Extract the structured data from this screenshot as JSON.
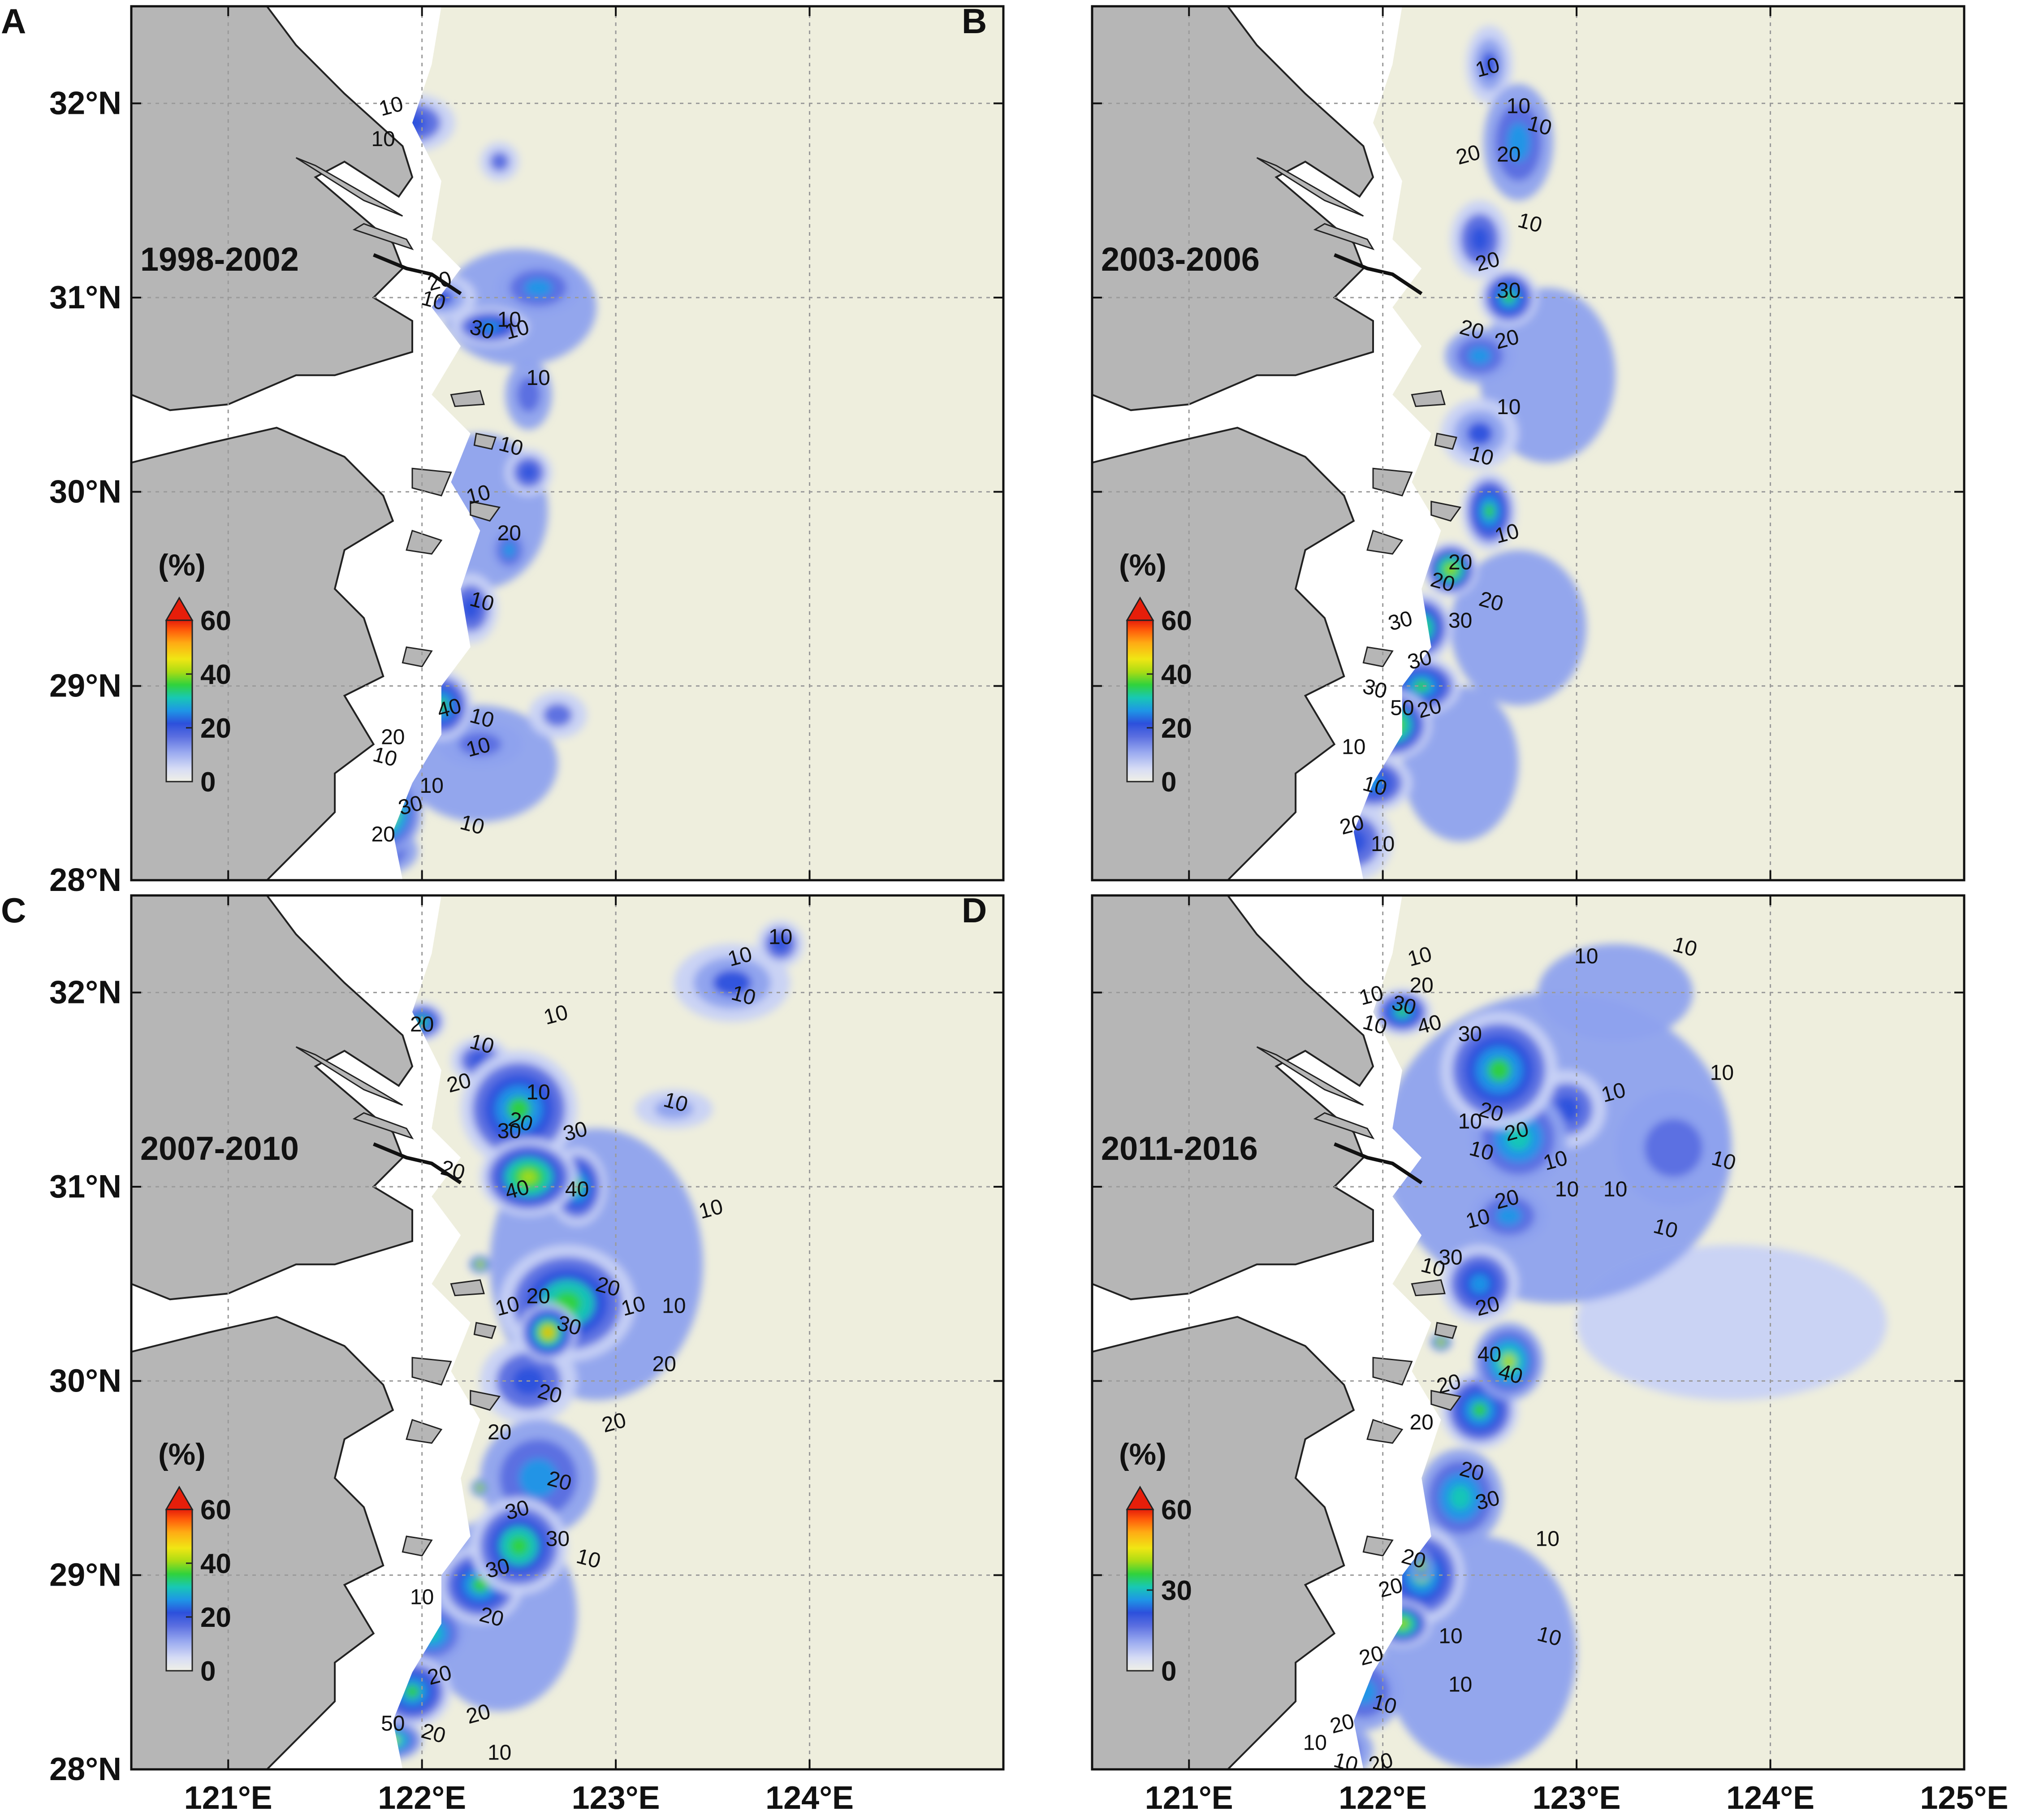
{
  "figure": {
    "x_ticks": [
      "121°E",
      "122°E",
      "123°E",
      "124°E",
      "125°E"
    ],
    "y_ticks": [
      "32°N",
      "31°N",
      "30°N",
      "29°N",
      "28°N"
    ],
    "colors": {
      "land": "#b6b6b6",
      "coast": "#ffffff",
      "ocean_background": "#eeeedd",
      "colormap": [
        "#f0f0e6",
        "#c8d2f5",
        "#8ea2ee",
        "#5a6ee0",
        "#2c50dc",
        "#1e96e6",
        "#18c8b4",
        "#30d23c",
        "#aadc14",
        "#f0e614",
        "#ffaa14",
        "#ff5a0a",
        "#e61e0a"
      ]
    },
    "panels": [
      {
        "letter": "A",
        "period": "1998-2002",
        "colorbar": {
          "unit": "(%)",
          "ticks": [
            "60",
            "40",
            "20",
            "0"
          ]
        },
        "contour_labels": [
          "10",
          "10",
          "10",
          "20",
          "10",
          "30",
          "10",
          "10",
          "10",
          "10",
          "20",
          "10",
          "40",
          "20",
          "10",
          "10",
          "10",
          "10",
          "30",
          "20",
          "10"
        ]
      },
      {
        "letter": "B",
        "period": "2003-2006",
        "colorbar": {
          "unit": "(%)",
          "ticks": [
            "60",
            "40",
            "20",
            "0"
          ]
        },
        "contour_labels": [
          "10",
          "10",
          "10",
          "20",
          "20",
          "10",
          "20",
          "30",
          "20",
          "20",
          "10",
          "10",
          "10",
          "20",
          "20",
          "30",
          "30",
          "20",
          "30",
          "50",
          "30",
          "20",
          "10",
          "10",
          "20",
          "10"
        ]
      },
      {
        "letter": "C",
        "period": "2007-2010",
        "colorbar": {
          "unit": "(%)",
          "ticks": [
            "60",
            "40",
            "20",
            "0"
          ]
        },
        "contour_labels": [
          "10",
          "20",
          "10",
          "20",
          "10",
          "20",
          "10",
          "10",
          "10",
          "30",
          "30",
          "20",
          "40",
          "40",
          "10",
          "10",
          "20",
          "20",
          "10",
          "10",
          "30",
          "10",
          "20",
          "20",
          "20",
          "20",
          "20",
          "30",
          "30",
          "10",
          "30",
          "10",
          "20",
          "20",
          "50",
          "20",
          "20",
          "10"
        ]
      },
      {
        "letter": "D",
        "period": "2011-2016",
        "colorbar": {
          "unit": "(%)",
          "ticks": [
            "60",
            "30",
            "0"
          ]
        },
        "contour_labels": [
          "10",
          "10",
          "10",
          "10",
          "20",
          "30",
          "40",
          "30",
          "10",
          "10",
          "10",
          "20",
          "20",
          "10",
          "10",
          "10",
          "10",
          "10",
          "20",
          "10",
          "10",
          "10",
          "30",
          "10",
          "20",
          "40",
          "40",
          "20",
          "20",
          "20",
          "30",
          "10",
          "20",
          "20",
          "10",
          "10",
          "20",
          "10",
          "10",
          "20",
          "10",
          "10",
          "20"
        ]
      }
    ]
  }
}
